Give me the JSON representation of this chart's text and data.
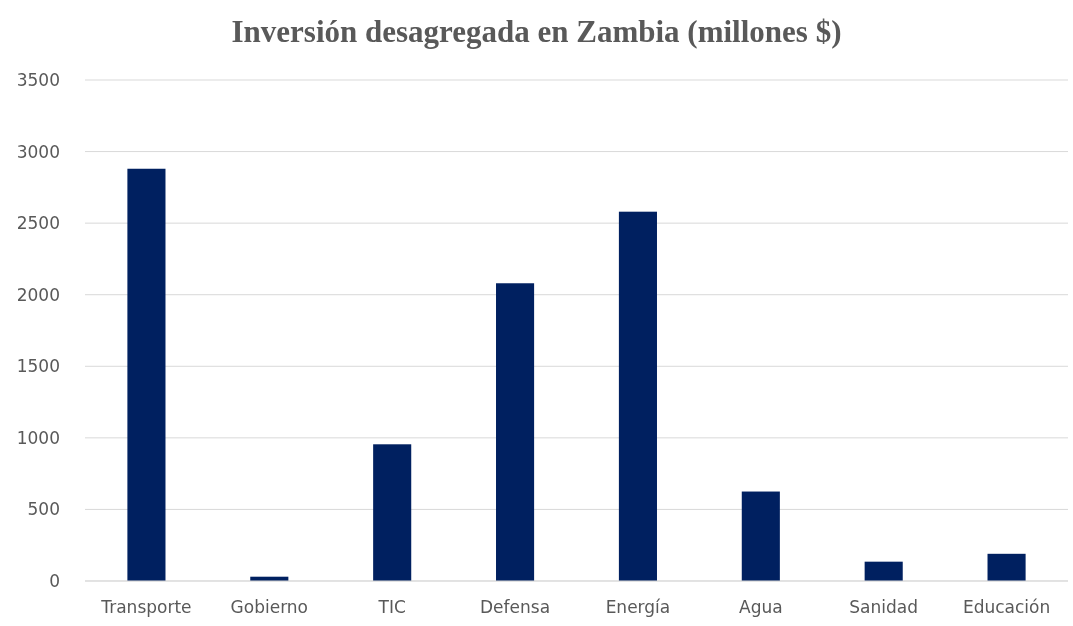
{
  "chart_data": {
    "type": "bar",
    "title": "Inversión desagregada en Zambia (millones $)",
    "categories": [
      "Transporte",
      "Gobierno",
      "TIC",
      "Defensa",
      "Energía",
      "Agua",
      "Sanidad",
      "Educación"
    ],
    "values": [
      2880,
      30,
      955,
      2080,
      2580,
      625,
      135,
      190
    ],
    "color": "#002060",
    "ylim": [
      0,
      3500
    ],
    "yticks": [
      0,
      500,
      1000,
      1500,
      2000,
      2500,
      3000,
      3500
    ],
    "grid": "y"
  }
}
